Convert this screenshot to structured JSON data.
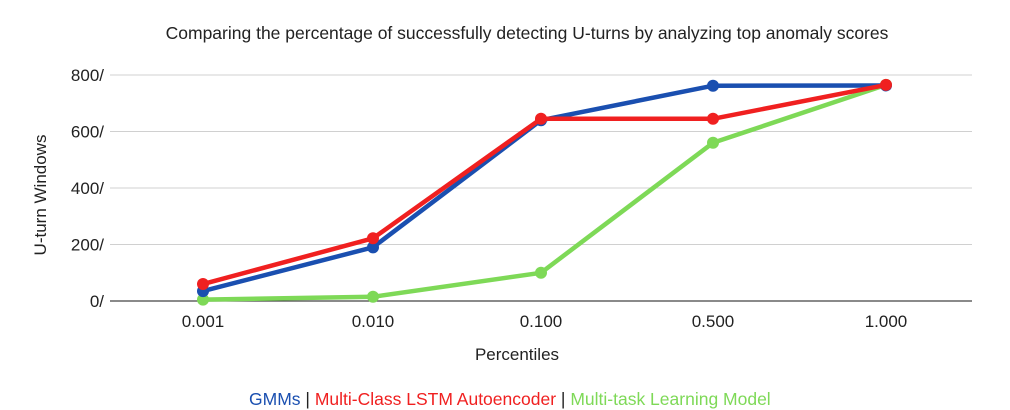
{
  "chart_data": {
    "type": "line",
    "title": "Comparing the percentage of successfully detecting U-turns by analyzing top anomaly scores",
    "xlabel": "Percentiles",
    "ylabel": "U-turn Windows",
    "categories": [
      "0.001",
      "0.010",
      "0.100",
      "0.500",
      "1.000"
    ],
    "y_ticks": [
      "0/",
      "200/",
      "400/",
      "600/",
      "800/"
    ],
    "ylim": [
      0,
      800
    ],
    "grid": true,
    "legend_position": "bottom",
    "series": [
      {
        "name": "GMMs",
        "color": "#1a4fb0",
        "values": [
          35,
          190,
          640,
          762,
          763
        ]
      },
      {
        "name": "Multi-Class LSTM Autoencoder",
        "color": "#f02020",
        "values": [
          60,
          222,
          645,
          645,
          765
        ]
      },
      {
        "name": "Multi-task Learning Model",
        "color": "#7ed957",
        "values": [
          5,
          15,
          100,
          560,
          765
        ]
      }
    ],
    "legend": {
      "separator": " | "
    }
  }
}
